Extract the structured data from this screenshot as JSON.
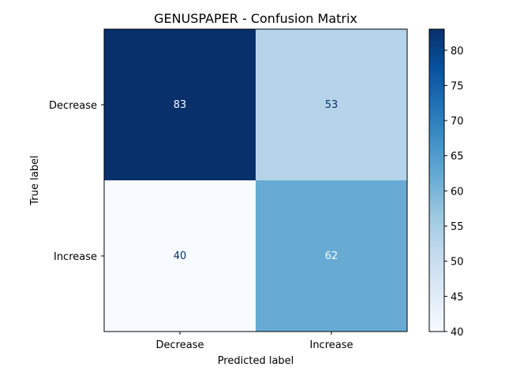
{
  "chart_data": {
    "type": "heatmap",
    "title": "GENUSPAPER - Confusion Matrix",
    "xlabel": "Predicted label",
    "ylabel": "True label",
    "x_categories": [
      "Decrease",
      "Increase"
    ],
    "y_categories": [
      "Decrease",
      "Increase"
    ],
    "matrix": [
      [
        83,
        53
      ],
      [
        40,
        62
      ]
    ],
    "colormap": "Blues",
    "colorbar": {
      "min": 40,
      "max": 83,
      "ticks": [
        40,
        45,
        50,
        55,
        60,
        65,
        70,
        75,
        80
      ],
      "tick_labels": [
        "40",
        "45",
        "50",
        "55",
        "60",
        "65",
        "70",
        "75",
        "80"
      ]
    },
    "grid": false
  }
}
